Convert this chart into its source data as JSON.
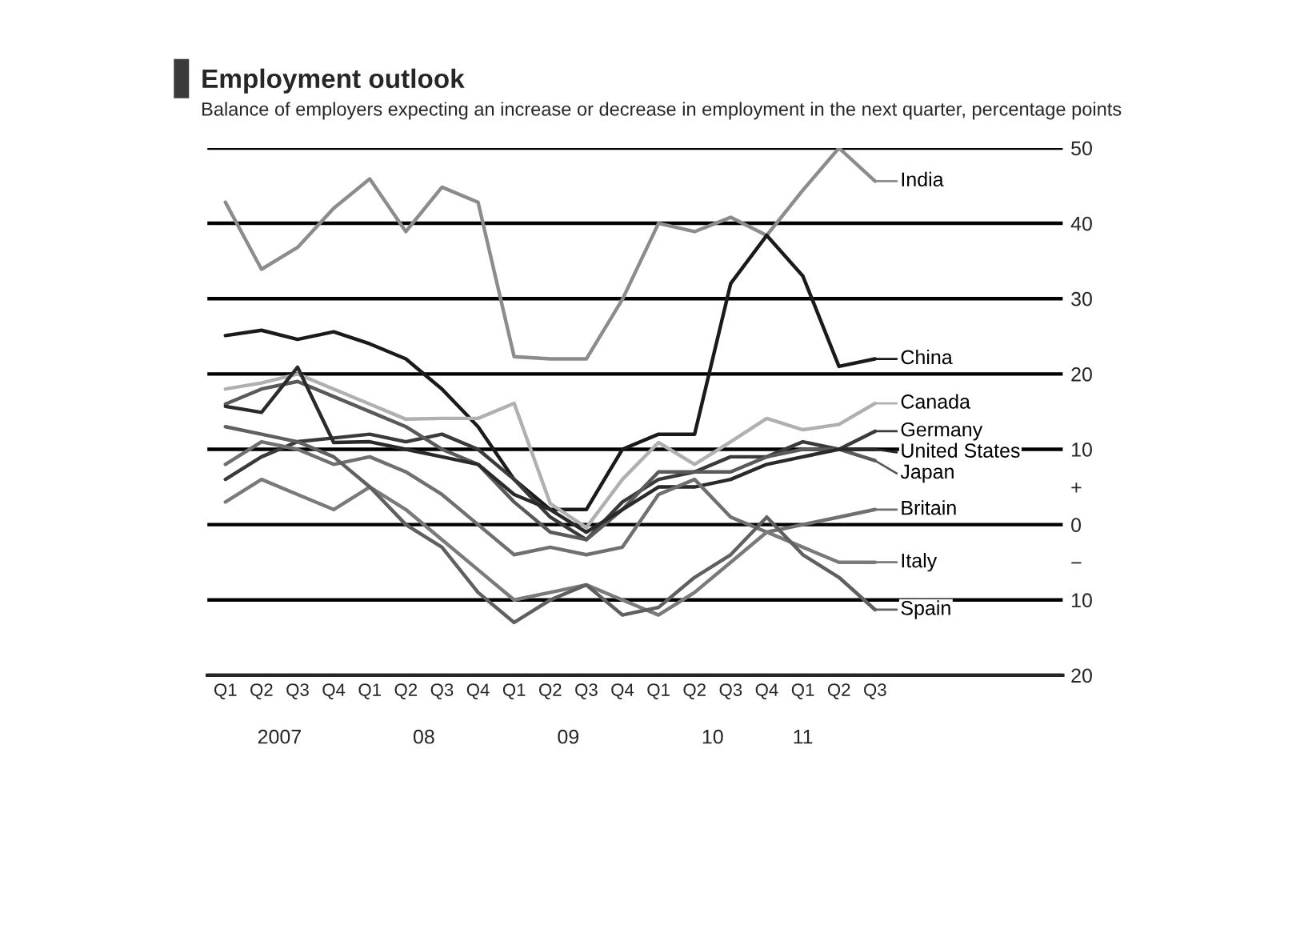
{
  "chart_data": {
    "type": "line",
    "title": "Employment outlook",
    "subtitle": "Balance of employers expecting an increase or decrease in employment in the next quarter, percentage points",
    "categories": [
      "Q1",
      "Q2",
      "Q3",
      "Q4",
      "Q1",
      "Q2",
      "Q3",
      "Q4",
      "Q1",
      "Q2",
      "Q3",
      "Q4",
      "Q1",
      "Q2",
      "Q3",
      "Q4",
      "Q1",
      "Q2",
      "Q3"
    ],
    "annotations": [
      "2007",
      "08",
      "09",
      "10",
      "11"
    ],
    "series": [
      {
        "name": "India",
        "color": "#8c8c8c",
        "values": [
          42.8,
          33.9,
          36.8,
          42,
          45.9,
          38.9,
          44.8,
          42.8,
          22.3,
          22,
          22,
          29.9,
          40,
          38.9,
          40.8,
          38.4,
          44.4,
          50,
          45.6
        ]
      },
      {
        "name": "China",
        "color": "#1a1a1a",
        "values": [
          25.1,
          25.8,
          24.6,
          25.6,
          24,
          22,
          18,
          13,
          6,
          2,
          2,
          10,
          12,
          12,
          32,
          38.4,
          33,
          21,
          22
        ]
      },
      {
        "name": "Canada",
        "color": "#b0b0b0",
        "values": [
          18,
          18.8,
          20,
          18,
          16,
          14,
          14.1,
          14.1,
          16.1,
          2.8,
          -0.4,
          6,
          10.9,
          8,
          11,
          14.1,
          12.6,
          13.3,
          16.1
        ]
      },
      {
        "name": "Germany",
        "color": "#3a3a3a",
        "values": [
          6,
          9,
          11,
          11.5,
          12,
          11,
          12,
          10,
          6,
          1,
          -2,
          3,
          6,
          7,
          9,
          9,
          11,
          10,
          12.4
        ]
      },
      {
        "name": "Japan",
        "color": "#5a5a5a",
        "values": [
          16,
          18,
          19,
          17,
          15,
          13,
          10,
          8,
          3,
          -1,
          -2,
          2,
          7,
          7,
          7,
          9,
          10,
          10,
          8.5
        ]
      },
      {
        "name": "United States",
        "color": "#2a2a2a",
        "values": [
          15.7,
          14.9,
          20.9,
          10.9,
          11,
          10,
          9,
          8,
          4,
          2,
          -1,
          2,
          5,
          5,
          6,
          8,
          9,
          10,
          10
        ]
      },
      {
        "name": "Britain",
        "color": "#707070",
        "values": [
          8,
          11,
          10,
          8,
          9,
          7,
          4,
          0,
          -4,
          -3,
          -4,
          -3,
          4,
          6,
          1,
          -1,
          0,
          1,
          2
        ]
      },
      {
        "name": "Italy",
        "color": "#7a7a7a",
        "values": [
          3,
          6,
          4,
          2,
          5,
          2,
          -2,
          -6,
          -10,
          -9,
          -8,
          -10,
          -12,
          -9,
          -5,
          -1,
          -3,
          -5,
          -5
        ]
      },
      {
        "name": "Spain",
        "color": "#606060",
        "values": [
          13,
          12,
          11,
          9,
          5,
          0,
          -3,
          -9,
          -13,
          -10,
          -8,
          -12,
          -11,
          -7,
          -4,
          1,
          -4,
          -7,
          -11.3
        ]
      }
    ],
    "ylim": [
      -20,
      50
    ],
    "legend": "right",
    "yticks": [
      50,
      40,
      30,
      20,
      10,
      {
        "value": 5,
        "label": "+"
      },
      0,
      {
        "value": -5,
        "label": "−"
      },
      {
        "value": -10,
        "label": "10"
      },
      {
        "value": -20,
        "label": "20"
      }
    ],
    "grid": "y",
    "marker": "none",
    "line_style": "solid"
  }
}
